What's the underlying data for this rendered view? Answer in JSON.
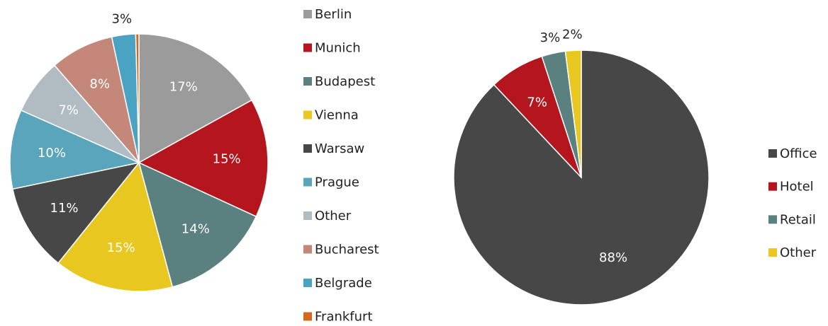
{
  "chart_data": [
    {
      "type": "pie",
      "categories": [
        "Berlin",
        "Munich",
        "Budapest",
        "Vienna",
        "Warsaw",
        "Prague",
        "Other",
        "Bucharest",
        "Belgrade",
        "Frankfurt"
      ],
      "values": [
        17,
        15,
        14,
        15,
        11,
        10,
        7,
        8,
        3,
        0.4
      ],
      "value_labels": [
        "17%",
        "15%",
        "14%",
        "15%",
        "11%",
        "10%",
        "7%",
        "8%",
        "3%",
        null
      ],
      "colors": [
        "#9b9b9b",
        "#b5161e",
        "#5a8080",
        "#e8c820",
        "#474747",
        "#5aa5bc",
        "#b1bcc2",
        "#c4887a",
        "#4aa3c2",
        "#d4691e"
      ],
      "legend": "right"
    },
    {
      "type": "pie",
      "categories": [
        "Office",
        "Hotel",
        "Retail",
        "Other"
      ],
      "values": [
        88,
        7,
        3,
        2
      ],
      "value_labels": [
        "88%",
        "7%",
        "3%",
        "2%"
      ],
      "colors": [
        "#474747",
        "#b5161e",
        "#5a8080",
        "#e8c820"
      ],
      "legend": "right"
    }
  ]
}
